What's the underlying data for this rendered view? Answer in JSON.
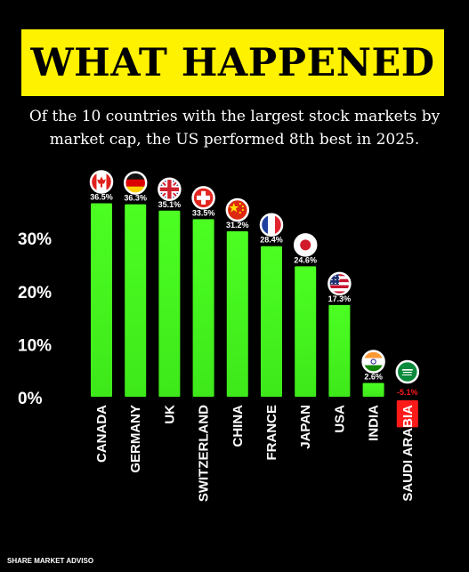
{
  "header": {
    "title": "WHAT HAPPENED",
    "subtitle": "Of the 10 countries with the largest stock markets by market cap, the US performed 8th best in 2025."
  },
  "source": "SHARE MARKET ADVISO",
  "colors": {
    "banner": "#fff200",
    "positive_bar": "#3ee81a",
    "negative_bar": "#ff1a1a",
    "background": "#000000"
  },
  "chart_data": {
    "type": "bar",
    "categories": [
      "CANADA",
      "GERMANY",
      "UK",
      "SWITZERLAND",
      "CHINA",
      "FRANCE",
      "JAPAN",
      "USA",
      "INDIA",
      "SAUDI ARABIA"
    ],
    "values": [
      36.5,
      36.3,
      35.1,
      33.5,
      31.2,
      28.4,
      24.6,
      17.3,
      2.6,
      -5.1
    ],
    "value_labels": [
      "36.5%",
      "36.3%",
      "35.1%",
      "33.5%",
      "31.2%",
      "28.4%",
      "24.6%",
      "17.3%",
      "2.6%",
      "-5.1%"
    ],
    "flag_icons": [
      "flag-canada-icon",
      "flag-germany-icon",
      "flag-uk-icon",
      "flag-switzerland-icon",
      "flag-china-icon",
      "flag-france-icon",
      "flag-japan-icon",
      "flag-usa-icon",
      "flag-india-icon",
      "flag-saudi-arabia-icon"
    ],
    "yticks": [
      0,
      10,
      20,
      30
    ],
    "ytick_labels": [
      "0%",
      "10%",
      "20%",
      "30%"
    ],
    "ylim": [
      -5.1,
      36.5
    ],
    "grid": false,
    "legend": "none"
  }
}
